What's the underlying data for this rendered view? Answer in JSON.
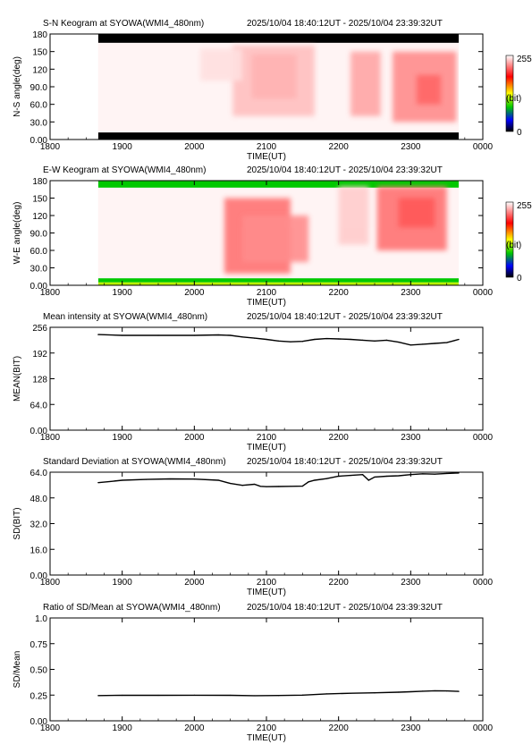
{
  "chart_data": [
    {
      "type": "heatmap",
      "title": "S-N Keogram at SYOWA(WMI4_480nm)",
      "time_range": "2025/10/04 18:40:12UT - 2025/10/04 23:39:32UT",
      "xlabel": "TIME(UT)",
      "ylabel": "N-S angle(deg)",
      "x_ticks": [
        "1800",
        "1900",
        "2000",
        "2100",
        "2200",
        "2300",
        "0000"
      ],
      "y_ticks": [
        "0.00",
        "30.0",
        "60.0",
        "90.0",
        "120",
        "150",
        "180"
      ],
      "xlim": [
        0,
        360
      ],
      "ylim": [
        0,
        180
      ],
      "data_start": 40,
      "data_end": 340,
      "colorbar": {
        "max": "255",
        "unit": "(bit)",
        "min": "0"
      },
      "regions": [
        {
          "x0": 40,
          "x1": 340,
          "y0": 165,
          "y1": 180,
          "level": 0
        },
        {
          "x0": 40,
          "x1": 340,
          "y0": 0,
          "y1": 12,
          "level": 0
        },
        {
          "x0": 168,
          "x1": 205,
          "y0": 70,
          "y1": 145,
          "level": 0.75
        },
        {
          "x0": 152,
          "x1": 220,
          "y0": 40,
          "y1": 160,
          "level": 0.25
        },
        {
          "x0": 125,
          "x1": 160,
          "y0": 100,
          "y1": 155,
          "level": 0.12
        },
        {
          "x0": 250,
          "x1": 275,
          "y0": 40,
          "y1": 150,
          "level": 0.35
        },
        {
          "x0": 285,
          "x1": 338,
          "y0": 30,
          "y1": 150,
          "level": 0.45
        },
        {
          "x0": 305,
          "x1": 325,
          "y0": 60,
          "y1": 110,
          "level": 0.6
        }
      ]
    },
    {
      "type": "heatmap",
      "title": "E-W Keogram at SYOWA(WMI4_480nm)",
      "time_range": "2025/10/04 18:40:12UT - 2025/10/04 23:39:32UT",
      "xlabel": "TIME(UT)",
      "ylabel": "W-E angle(deg)",
      "x_ticks": [
        "1800",
        "1900",
        "2000",
        "2100",
        "2200",
        "2300",
        "0000"
      ],
      "y_ticks": [
        "0.00",
        "30.0",
        "60.0",
        "90.0",
        "120",
        "150",
        "180"
      ],
      "xlim": [
        0,
        360
      ],
      "ylim": [
        0,
        180
      ],
      "data_start": 40,
      "data_end": 340,
      "colorbar": {
        "max": "255",
        "unit": "(bit)",
        "min": "0"
      },
      "regions": [
        {
          "x0": 40,
          "x1": 340,
          "y0": 168,
          "y1": 180,
          "level": 0.32
        },
        {
          "x0": 40,
          "x1": 340,
          "y0": 5,
          "y1": 12,
          "level": 0.32
        },
        {
          "x0": 40,
          "x1": 340,
          "y0": 0,
          "y1": 5,
          "level": 0.45
        },
        {
          "x0": 145,
          "x1": 200,
          "y0": 20,
          "y1": 150,
          "level": 0.55
        },
        {
          "x0": 160,
          "x1": 215,
          "y0": 40,
          "y1": 120,
          "level": 0.45
        },
        {
          "x0": 240,
          "x1": 265,
          "y0": 70,
          "y1": 170,
          "level": 0.2
        },
        {
          "x0": 272,
          "x1": 330,
          "y0": 60,
          "y1": 170,
          "level": 0.55
        },
        {
          "x0": 290,
          "x1": 320,
          "y0": 100,
          "y1": 150,
          "level": 0.65
        }
      ]
    },
    {
      "type": "line",
      "title": "Mean intensity at SYOWA(WMI4_480nm)",
      "time_range": "2025/10/04 18:40:12UT - 2025/10/04 23:39:32UT",
      "xlabel": "TIME(UT)",
      "ylabel": "MEAN(BIT)",
      "x_ticks": [
        "1800",
        "1900",
        "2000",
        "2100",
        "2200",
        "2300",
        "0000"
      ],
      "y_ticks": [
        "0.00",
        "64.0",
        "128",
        "192",
        "256"
      ],
      "xlim": [
        0,
        360
      ],
      "ylim": [
        0,
        256
      ],
      "series": [
        {
          "x": [
            40,
            60,
            90,
            120,
            140,
            150,
            160,
            170,
            180,
            190,
            200,
            210,
            220,
            230,
            240,
            250,
            260,
            270,
            280,
            290,
            300,
            310,
            320,
            330,
            340
          ],
          "y": [
            238,
            236,
            236,
            236,
            237,
            236,
            232,
            229,
            226,
            222,
            220,
            221,
            226,
            228,
            227,
            226,
            224,
            222,
            224,
            219,
            212,
            214,
            216,
            218,
            226
          ]
        }
      ]
    },
    {
      "type": "line",
      "title": "Standard Deviation at SYOWA(WMI4_480nm)",
      "time_range": "2025/10/04 18:40:12UT - 2025/10/04 23:39:32UT",
      "xlabel": "TIME(UT)",
      "ylabel": "SD(BIT)",
      "x_ticks": [
        "1800",
        "1900",
        "2000",
        "2100",
        "2200",
        "2300",
        "0000"
      ],
      "y_ticks": [
        "0.00",
        "16.0",
        "32.0",
        "48.0",
        "64.0"
      ],
      "xlim": [
        0,
        360
      ],
      "ylim": [
        0,
        64
      ],
      "series": [
        {
          "x": [
            40,
            50,
            60,
            80,
            100,
            120,
            140,
            150,
            160,
            170,
            175,
            180,
            190,
            200,
            210,
            215,
            220,
            230,
            240,
            250,
            260,
            265,
            270,
            280,
            290,
            300,
            310,
            320,
            330,
            340
          ],
          "y": [
            57.5,
            58.2,
            59.0,
            59.5,
            59.8,
            59.7,
            59.0,
            57.0,
            55.8,
            56.5,
            55.2,
            55.0,
            55.1,
            55.2,
            55.3,
            58.0,
            59.0,
            60.0,
            61.5,
            62.0,
            62.5,
            59.0,
            61.0,
            61.5,
            61.8,
            62.5,
            63.0,
            62.8,
            63.2,
            63.5
          ]
        }
      ]
    },
    {
      "type": "line",
      "title": "Ratio of SD/Mean at SYOWA(WMI4_480nm)",
      "time_range": "2025/10/04 18:40:12UT - 2025/10/04 23:39:32UT",
      "xlabel": "TIME(UT)",
      "ylabel": "SD/Mean",
      "x_ticks": [
        "1800",
        "1900",
        "2000",
        "2100",
        "2200",
        "2300",
        "0000"
      ],
      "y_ticks": [
        "0.00",
        "0.25",
        "0.50",
        "0.75",
        "1.0"
      ],
      "xlim": [
        0,
        360
      ],
      "ylim": [
        0,
        1.0
      ],
      "series": [
        {
          "x": [
            40,
            60,
            90,
            120,
            150,
            170,
            190,
            210,
            230,
            250,
            270,
            290,
            300,
            310,
            320,
            330,
            340
          ],
          "y": [
            0.245,
            0.248,
            0.248,
            0.249,
            0.248,
            0.244,
            0.246,
            0.25,
            0.262,
            0.268,
            0.272,
            0.278,
            0.283,
            0.288,
            0.292,
            0.29,
            0.286
          ]
        }
      ]
    }
  ]
}
